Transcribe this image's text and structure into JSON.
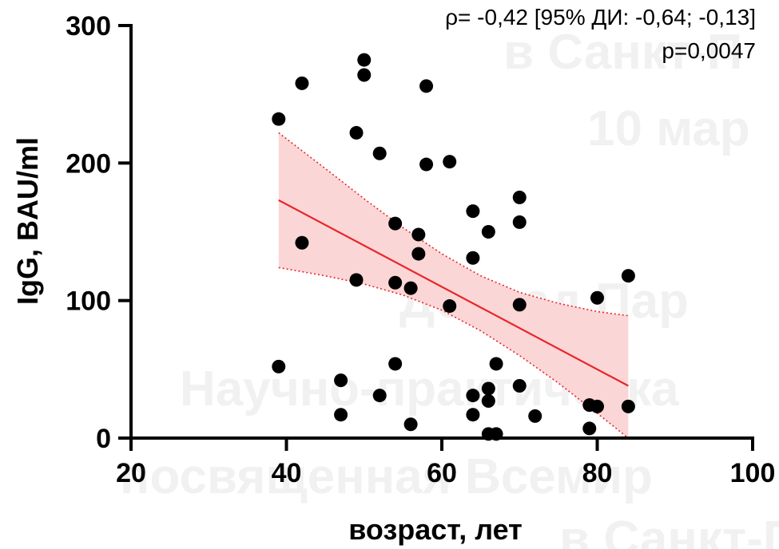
{
  "watermark_lines": [
    "в Санкт-П",
    "10 мар",
    "Доклад Пар",
    "Научно-практическа",
    "посвященная Всемир",
    "в Санкт-П"
  ],
  "chart_data": {
    "type": "scatter",
    "xlabel": "возраст, лет",
    "ylabel": "IgG, BAU/ml",
    "xlim": [
      20,
      100
    ],
    "ylim": [
      0,
      300
    ],
    "xticks": [
      "20",
      "40",
      "60",
      "80",
      "100"
    ],
    "yticks": [
      "0",
      "100",
      "200",
      "300"
    ],
    "annotations": [
      "ρ= -0,42 [95% ДИ: -0,64; -0,13]",
      "p=0,0047"
    ],
    "colors": {
      "points": "#000000",
      "fit_line": "#e8262b",
      "band_fill": "#fbd6d6",
      "band_edge": "#e8262b"
    },
    "points": [
      {
        "x": 39,
        "y": 232
      },
      {
        "x": 39,
        "y": 52
      },
      {
        "x": 42,
        "y": 258
      },
      {
        "x": 42,
        "y": 142
      },
      {
        "x": 47,
        "y": 42
      },
      {
        "x": 47,
        "y": 17
      },
      {
        "x": 49,
        "y": 222
      },
      {
        "x": 49,
        "y": 115
      },
      {
        "x": 50,
        "y": 275
      },
      {
        "x": 50,
        "y": 264
      },
      {
        "x": 52,
        "y": 207
      },
      {
        "x": 52,
        "y": 31
      },
      {
        "x": 54,
        "y": 156
      },
      {
        "x": 54,
        "y": 113
      },
      {
        "x": 54,
        "y": 54
      },
      {
        "x": 56,
        "y": 109
      },
      {
        "x": 56,
        "y": 10
      },
      {
        "x": 57,
        "y": 148
      },
      {
        "x": 57,
        "y": 134
      },
      {
        "x": 58,
        "y": 256
      },
      {
        "x": 58,
        "y": 199
      },
      {
        "x": 61,
        "y": 201
      },
      {
        "x": 61,
        "y": 96
      },
      {
        "x": 64,
        "y": 165
      },
      {
        "x": 64,
        "y": 131
      },
      {
        "x": 64,
        "y": 31
      },
      {
        "x": 64,
        "y": 17
      },
      {
        "x": 66,
        "y": 150
      },
      {
        "x": 66,
        "y": 36
      },
      {
        "x": 66,
        "y": 27
      },
      {
        "x": 66,
        "y": 3
      },
      {
        "x": 67,
        "y": 54
      },
      {
        "x": 67,
        "y": 3
      },
      {
        "x": 70,
        "y": 175
      },
      {
        "x": 70,
        "y": 157
      },
      {
        "x": 70,
        "y": 97
      },
      {
        "x": 70,
        "y": 38
      },
      {
        "x": 72,
        "y": 16
      },
      {
        "x": 79,
        "y": 24
      },
      {
        "x": 79,
        "y": 7
      },
      {
        "x": 80,
        "y": 102
      },
      {
        "x": 80,
        "y": 23
      },
      {
        "x": 84,
        "y": 118
      },
      {
        "x": 84,
        "y": 23
      }
    ],
    "fit_line": {
      "x": [
        39,
        84
      ],
      "y": [
        173,
        38
      ]
    },
    "ci_band": {
      "x": [
        39,
        45,
        50,
        55,
        60,
        65,
        70,
        75,
        80,
        84
      ],
      "upper": [
        222,
        196,
        174,
        153,
        134,
        118,
        106,
        98,
        92,
        89
      ],
      "lower": [
        124,
        118,
        112,
        104,
        93,
        78,
        60,
        40,
        18,
        0
      ]
    }
  }
}
